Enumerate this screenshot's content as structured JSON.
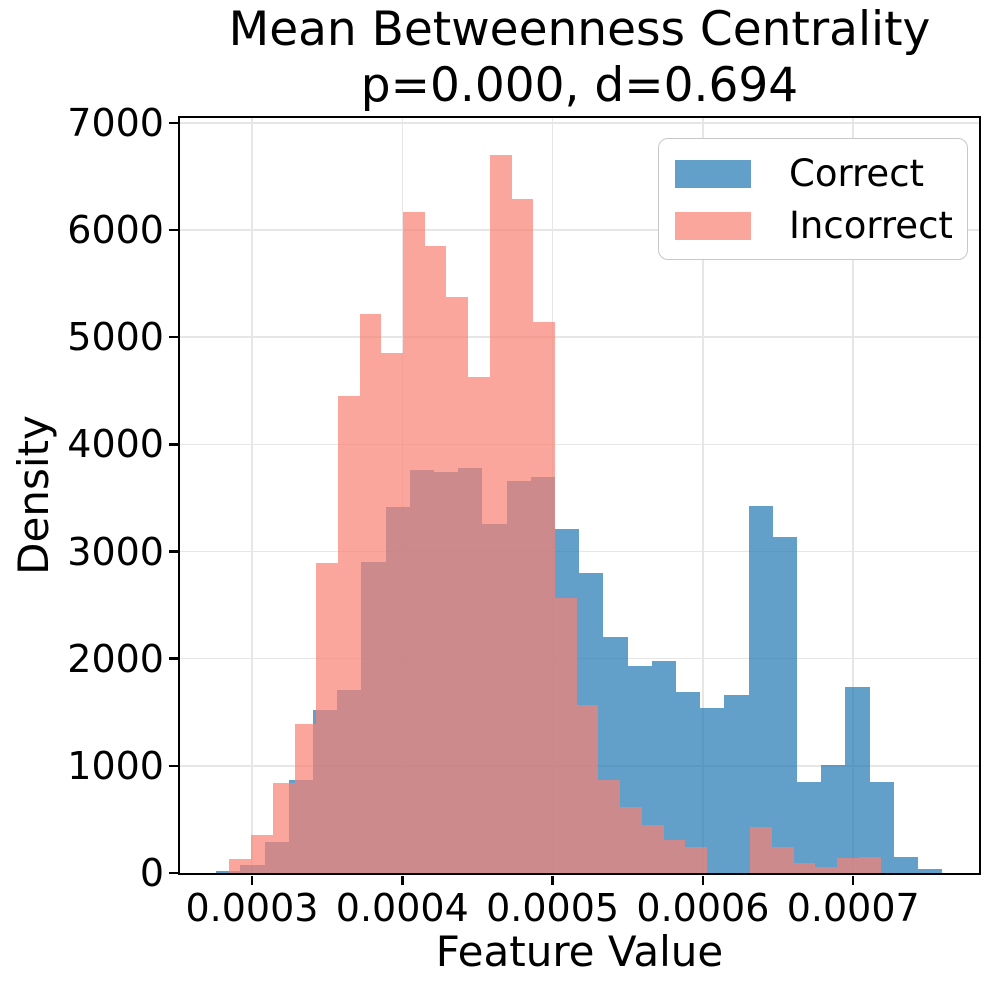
{
  "chart_data": {
    "type": "histogram",
    "title": "Mean Betweenness Centrality",
    "subtitle": "p=0.000, d=0.694",
    "xlabel": "Feature Value",
    "ylabel": "Density",
    "xlim": [
      0.0002521,
      0.0007837
    ],
    "ylim": [
      0,
      7046
    ],
    "x_ticks": [
      0.0003,
      0.0004,
      0.0005,
      0.0006,
      0.0007
    ],
    "x_tick_labels": [
      "0.0003",
      "0.0004",
      "0.0005",
      "0.0006",
      "0.0007"
    ],
    "y_ticks": [
      0,
      1000,
      2000,
      3000,
      4000,
      5000,
      6000,
      7000
    ],
    "y_tick_labels": [
      "0",
      "1000",
      "2000",
      "3000",
      "4000",
      "5000",
      "6000",
      "7000"
    ],
    "grid": true,
    "grid_color": "#E6E6E6",
    "legend_position": "upper right",
    "series": [
      {
        "name": "Correct",
        "color": "#1F77B4",
        "alpha": 0.7,
        "color_on_white": "#62A0CA",
        "bin_start": 0.00027618,
        "bin_width": 1.6101e-05,
        "values": [
          20,
          75,
          290,
          870,
          1520,
          1710,
          2900,
          3420,
          3760,
          3740,
          3780,
          3260,
          3660,
          3700,
          3210,
          2800,
          2200,
          1930,
          1975,
          1690,
          1540,
          1665,
          3425,
          3135,
          850,
          1010,
          1740,
          850,
          150,
          40
        ]
      },
      {
        "name": "Incorrect",
        "color": "#FA8072",
        "alpha": 0.7,
        "color_on_white": "#FBA69C",
        "bin_start": 0.00028503,
        "bin_width": 1.4438e-05,
        "values": [
          130,
          355,
          840,
          1395,
          2890,
          4450,
          5220,
          4850,
          6170,
          5850,
          5380,
          4630,
          6700,
          6290,
          5140,
          2570,
          1570,
          870,
          620,
          450,
          310,
          240,
          0,
          0,
          430,
          245,
          95,
          55,
          140,
          150
        ]
      }
    ],
    "overlap_color_on_white": "#CC8A8C"
  }
}
